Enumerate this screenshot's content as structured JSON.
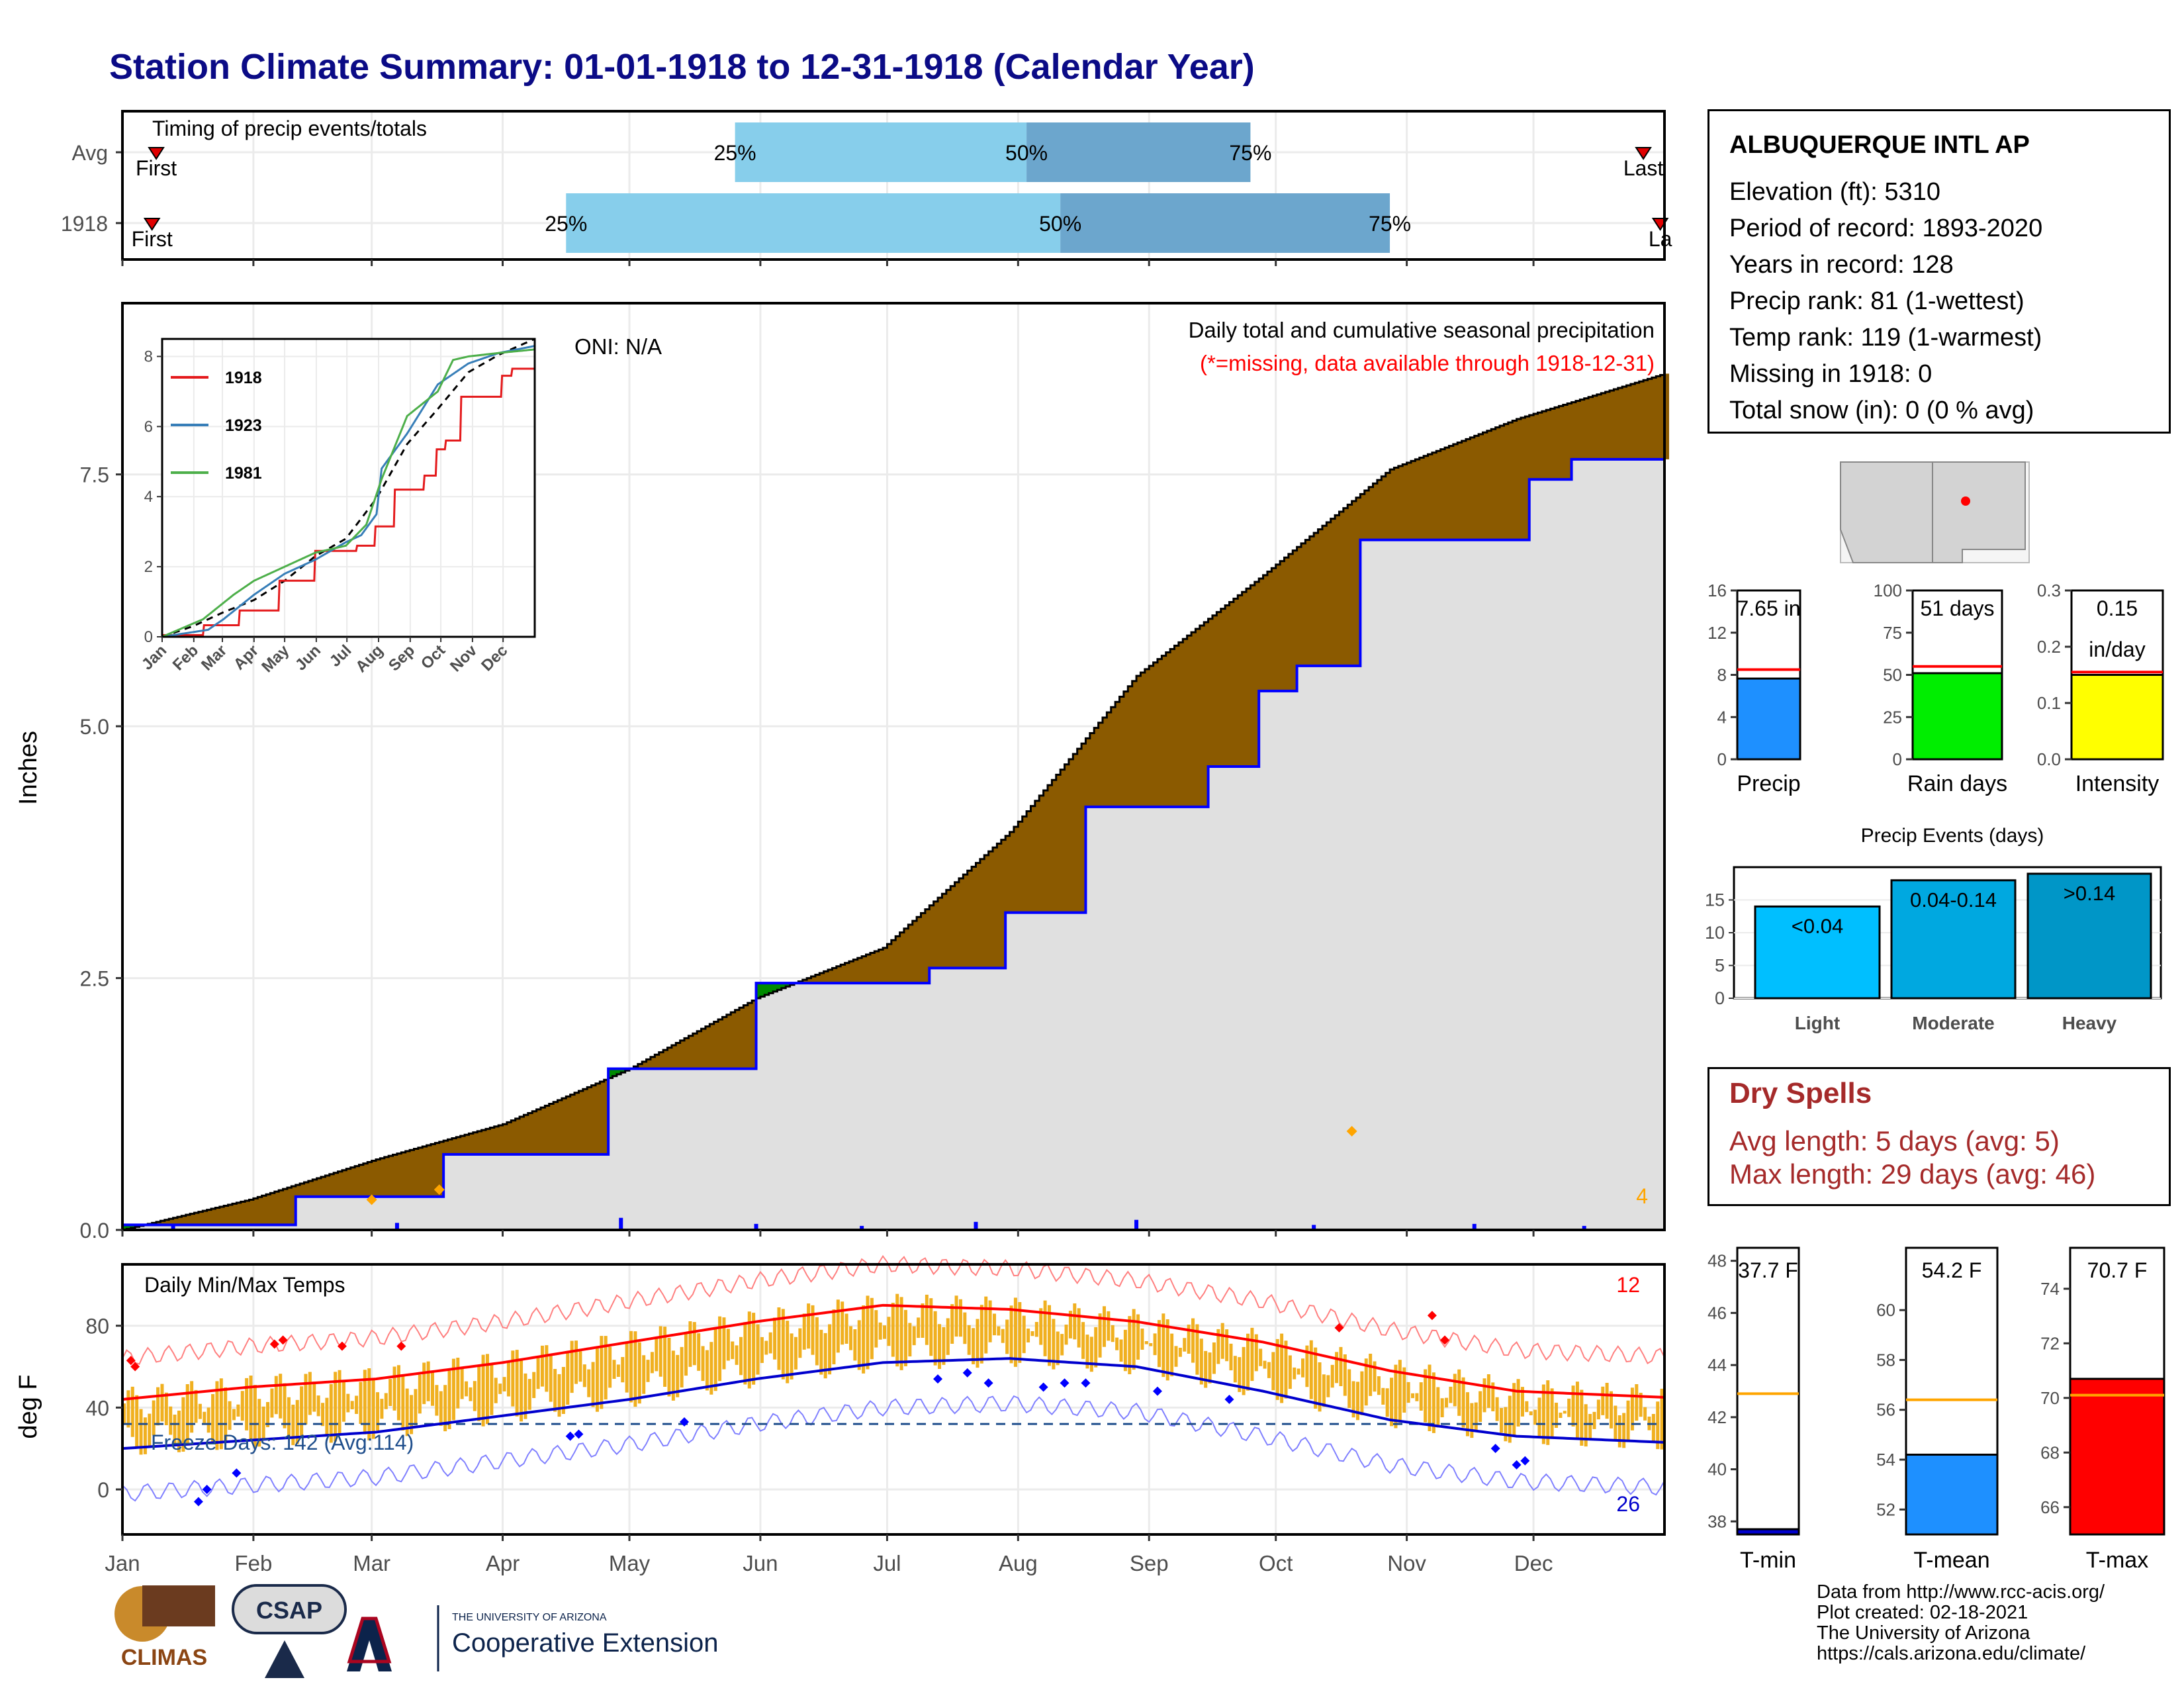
{
  "title": "Station Climate Summary: 01-01-1918 to 12-31-1918 (Calendar Year)",
  "timing": {
    "label": "Timing of precip events/totals",
    "rows": [
      {
        "name": "Avg",
        "first_label": "First",
        "last_label": "Last",
        "first_day": 8,
        "last_day": 360,
        "p25_day": 145,
        "p50_day": 214,
        "p75_day": 267,
        "p25_label": "25%",
        "p50_label": "50%",
        "p75_label": "75%"
      },
      {
        "name": "1918",
        "first_label": "First",
        "last_label": "La",
        "first_day": 7,
        "last_day": 364,
        "p25_day": 105,
        "p50_day": 222,
        "p75_day": 300,
        "p25_label": "25%",
        "p50_label": "50%",
        "p75_label": "75%"
      }
    ]
  },
  "precip_panel": {
    "ylabel": "Inches",
    "title": "Daily total and cumulative seasonal precipitation",
    "subtitle": "(*=missing, data available through 1918-12-31)",
    "oni": "ONI: N/A",
    "count": "4",
    "yticks": [
      "0.0",
      "2.5",
      "5.0",
      "7.5"
    ]
  },
  "inset": {
    "legend": [
      {
        "name": "1918",
        "color": "#e41a1c"
      },
      {
        "name": "1923",
        "color": "#377eb8"
      },
      {
        "name": "1981",
        "color": "#4daf4a"
      }
    ],
    "yticks": [
      "0",
      "2",
      "4",
      "6",
      "8"
    ],
    "months": [
      "Jan",
      "Feb",
      "Mar",
      "Apr",
      "May",
      "Jun",
      "Jul",
      "Aug",
      "Sep",
      "Oct",
      "Nov",
      "Dec"
    ]
  },
  "temp_panel": {
    "title": "Daily Min/Max Temps",
    "ylabel": "deg F",
    "freeze_text": "Freeze Days: 142 (Avg:114)",
    "hot_count": "12",
    "cold_count": "26",
    "yticks": [
      "0",
      "40",
      "80"
    ]
  },
  "months": [
    "Jan",
    "Feb",
    "Mar",
    "Apr",
    "May",
    "Jun",
    "Jul",
    "Aug",
    "Sep",
    "Oct",
    "Nov",
    "Dec"
  ],
  "station": {
    "name": "ALBUQUERQUE INTL AP",
    "lines": [
      "Elevation (ft): 5310",
      "Period of record: 1893-2020",
      "Years in record: 128",
      "Precip rank: 81 (1-wettest)",
      "Temp rank: 119 (1-warmest)",
      "Missing in 1918: 0",
      "Total snow (in): 0 (0 % avg)"
    ]
  },
  "summary_bars": [
    {
      "name": "Precip",
      "label1": "7.65 in",
      "label2": "",
      "value": 7.65,
      "avg": 8.5,
      "max": 16,
      "ticks": [
        "0",
        "4",
        "8",
        "12",
        "16"
      ],
      "color": "#1e90ff"
    },
    {
      "name": "Rain days",
      "label1": "51 days",
      "label2": "",
      "value": 51,
      "avg": 55,
      "max": 100,
      "ticks": [
        "0",
        "25",
        "50",
        "75",
        "100"
      ],
      "color": "#00ee00"
    },
    {
      "name": "Intensity",
      "label1": "0.15",
      "label2": "in/day",
      "value": 0.15,
      "avg": 0.155,
      "max": 0.3,
      "ticks": [
        "0.0",
        "0.1",
        "0.2",
        "0.3"
      ],
      "color": "#ffff00"
    }
  ],
  "events": {
    "title": "Precip Events (days)",
    "yticks": [
      "0",
      "5",
      "10",
      "15"
    ],
    "bars": [
      {
        "name": "Light",
        "label": "<0.04",
        "value": 14,
        "color": "#00bfff"
      },
      {
        "name": "Moderate",
        "label": "0.04-0.14",
        "value": 18,
        "color": "#00a8e0"
      },
      {
        "name": "Heavy",
        "label": ">0.14",
        "value": 19,
        "color": "#0096c7"
      }
    ]
  },
  "dry_spells": {
    "title": "Dry Spells",
    "avg_line": "Avg length: 5 days (avg: 5)",
    "max_line": "Max length: 29 days (avg: 46)"
  },
  "temp_bars": [
    {
      "name": "T-min",
      "label": "37.7 F",
      "value": 37.7,
      "avg": 42.9,
      "min": 37.5,
      "max": 48.5,
      "ticks": [
        "38",
        "40",
        "42",
        "44",
        "46",
        "48"
      ],
      "color": "#0000cd"
    },
    {
      "name": "T-mean",
      "label": "54.2 F",
      "value": 54.2,
      "avg": 56.4,
      "min": 51,
      "max": 62.5,
      "ticks": [
        "52",
        "54",
        "56",
        "58",
        "60"
      ],
      "color": "#1e90ff"
    },
    {
      "name": "T-max",
      "label": "70.7 F",
      "value": 70.7,
      "avg": 70.1,
      "min": 65,
      "max": 75.5,
      "ticks": [
        "66",
        "68",
        "70",
        "72",
        "74"
      ],
      "color": "#ff0000"
    }
  ],
  "credits": [
    "Data from http://www.rcc-acis.org/",
    "Plot created: 02-18-2021",
    "The University of Arizona",
    "https://cals.arizona.edu/climate/"
  ],
  "logos": {
    "climas": "CLIMAS",
    "csap": "CSAP",
    "ua_small": "THE UNIVERSITY OF ARIZONA",
    "ua_big": "Cooperative Extension"
  },
  "chart_data": [
    {
      "type": "area",
      "title": "Daily total and cumulative seasonal precipitation",
      "ylabel": "Inches",
      "ylim": [
        0,
        9.2
      ],
      "series": [
        {
          "name": "1918",
          "x_day": [
            0,
            40,
            41,
            75,
            76,
            114,
            115,
            149,
            150,
            190,
            191,
            208,
            209,
            227,
            228,
            256,
            257,
            268,
            269,
            277,
            278,
            292,
            293,
            332,
            333,
            342,
            343,
            365
          ],
          "values": [
            0.05,
            0.05,
            0.33,
            0.33,
            0.75,
            0.75,
            1.6,
            1.6,
            2.45,
            2.45,
            2.6,
            2.6,
            3.15,
            3.15,
            4.2,
            4.2,
            4.6,
            4.6,
            5.35,
            5.35,
            5.6,
            5.6,
            6.85,
            6.85,
            7.45,
            7.45,
            7.65,
            7.65
          ]
        },
        {
          "x_day": [
            0,
            30,
            60,
            90,
            120,
            150,
            180,
            210,
            240,
            270,
            300,
            330,
            365
          ],
          "values": [
            0,
            0.3,
            0.7,
            1.05,
            1.6,
            2.3,
            2.8,
            3.95,
            5.5,
            6.5,
            7.55,
            8.05,
            8.5
          ]
        }
      ]
    },
    {
      "type": "line",
      "title": "Daily Min/Max Temps",
      "ylabel": "deg F",
      "ylim": [
        -22,
        110
      ],
      "series": [
        {
          "x_day": [
            0,
            30,
            60,
            90,
            120,
            150,
            180,
            210,
            240,
            270,
            300,
            330,
            365
          ],
          "values": [
            44,
            50,
            54,
            62,
            72,
            82,
            90,
            88,
            82,
            72,
            58,
            48,
            45
          ]
        },
        {
          "x_day": [
            0,
            30,
            60,
            90,
            120,
            150,
            180,
            210,
            240,
            270,
            300,
            330,
            365
          ],
          "values": [
            20,
            24,
            28,
            36,
            44,
            54,
            62,
            64,
            60,
            48,
            34,
            26,
            23
          ]
        }
      ]
    }
  ]
}
